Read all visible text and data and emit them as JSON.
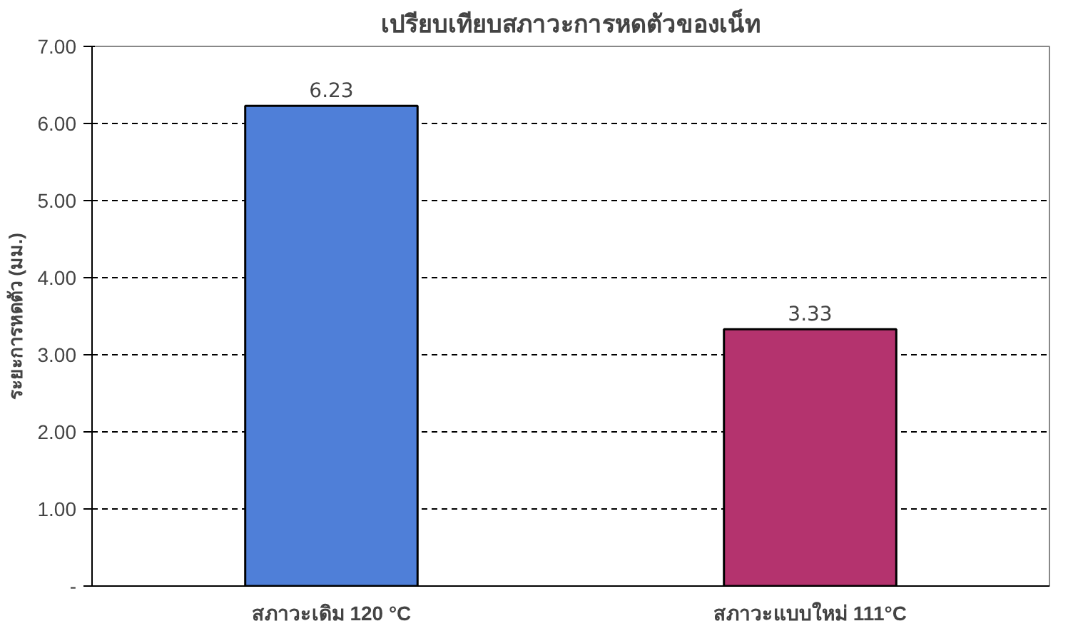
{
  "chart_data": {
    "type": "bar",
    "title": "เปรียบเทียบสภาวะการหดตัวของเน็ท",
    "ylabel": "ระยะการหดตัว (มม.)",
    "categories": [
      "สภาวะเดิม 120 °C",
      "สภาวะแบบใหม่ 111°C"
    ],
    "values": [
      6.23,
      3.33
    ],
    "colors": [
      "#4f7fd8",
      "#b4336e"
    ],
    "ylim": [
      0,
      7
    ],
    "yticks": [
      {
        "value": 0,
        "label": "-"
      },
      {
        "value": 1,
        "label": "1.00"
      },
      {
        "value": 2,
        "label": "2.00"
      },
      {
        "value": 3,
        "label": "3.00"
      },
      {
        "value": 4,
        "label": "4.00"
      },
      {
        "value": 5,
        "label": "5.00"
      },
      {
        "value": 6,
        "label": "6.00"
      },
      {
        "value": 7,
        "label": "7.00"
      }
    ],
    "data_labels": true,
    "grid": "y"
  }
}
